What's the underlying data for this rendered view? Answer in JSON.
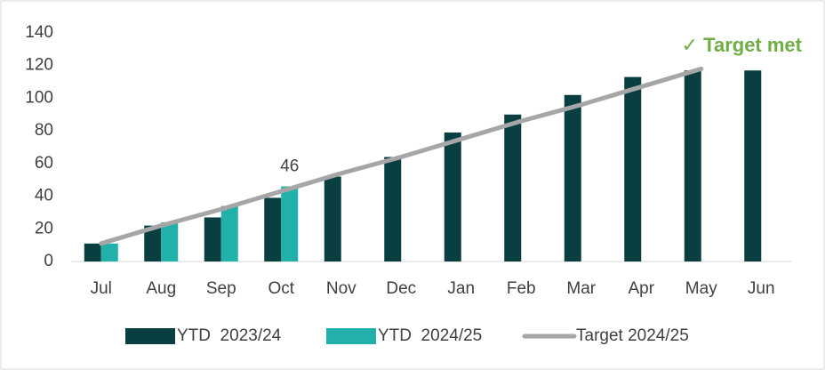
{
  "chart_data": {
    "type": "bar",
    "categories": [
      "Jul",
      "Aug",
      "Sep",
      "Oct",
      "Nov",
      "Dec",
      "Jan",
      "Feb",
      "Mar",
      "Apr",
      "May",
      "Jun"
    ],
    "series": [
      {
        "name": "YTD  2023/24",
        "color": "#0a3f41",
        "values": [
          11,
          22,
          27,
          39,
          52,
          64,
          79,
          90,
          102,
          113,
          117,
          117
        ]
      },
      {
        "name": "YTD  2024/25",
        "color": "#21b0aa",
        "values": [
          11,
          24,
          34,
          46,
          null,
          null,
          null,
          null,
          null,
          null,
          null,
          null
        ],
        "value_labels": [
          null,
          null,
          null,
          "46",
          null,
          null,
          null,
          null,
          null,
          null,
          null,
          null
        ]
      },
      {
        "name": "Target 2024/25",
        "type": "line",
        "color": "#a6a6a6",
        "values": [
          11,
          22,
          32,
          43,
          54,
          64,
          75,
          86,
          96,
          107,
          118,
          null
        ]
      }
    ],
    "annotation": "✓ Target met",
    "annotation_color": "#70ad47",
    "ylim": [
      0,
      140
    ],
    "yticks": [
      0,
      20,
      40,
      60,
      80,
      100,
      120,
      140
    ],
    "legend": "bottom"
  }
}
